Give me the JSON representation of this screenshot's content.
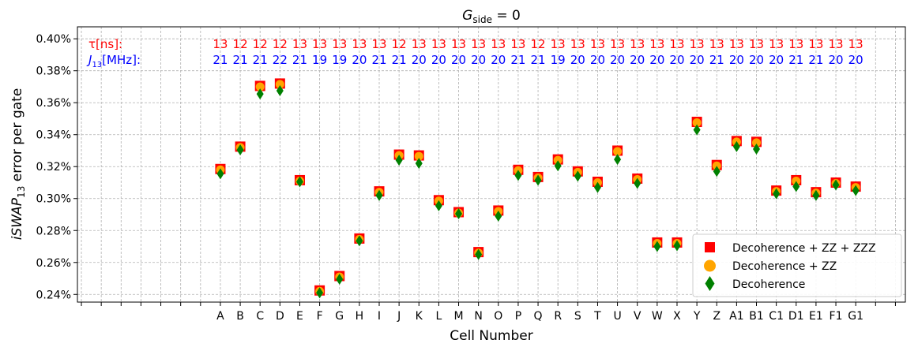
{
  "chart_data": {
    "type": "scatter",
    "title": "G_side = 0",
    "title_main": "G",
    "title_sub": "side",
    "title_rest": " = 0",
    "xlabel": "Cell Number",
    "ylabel": "iSWAP₁₃ error per gate",
    "ylabel_main": "iSWAP",
    "ylabel_sub": "13",
    "ylabel_rest": " error per gate",
    "ylim": [
      0.2352,
      0.4075
    ],
    "yticks": [
      0.24,
      0.26,
      0.28,
      0.3,
      0.32,
      0.34,
      0.36,
      0.38,
      0.4
    ],
    "ytick_labels": [
      "0.24%",
      "0.26%",
      "0.28%",
      "0.30%",
      "0.32%",
      "0.34%",
      "0.36%",
      "0.38%",
      "0.40%"
    ],
    "xlim": [
      -7.2,
      34.5
    ],
    "grid": true,
    "legend_position": "lower-right",
    "categories": [
      "A",
      "B",
      "C",
      "D",
      "E",
      "F",
      "G",
      "H",
      "I",
      "J",
      "K",
      "L",
      "M",
      "N",
      "O",
      "P",
      "Q",
      "R",
      "S",
      "T",
      "U",
      "V",
      "W",
      "X",
      "Y",
      "Z",
      "A1",
      "B1",
      "C1",
      "D1",
      "E1",
      "F1",
      "G1"
    ],
    "series": [
      {
        "name": "Decoherence + ZZ + ZZZ",
        "marker": "square",
        "color": "#ff0000",
        "values": [
          0.3185,
          0.3325,
          0.3705,
          0.372,
          0.3115,
          0.2425,
          0.2515,
          0.275,
          0.3045,
          0.3275,
          0.327,
          0.299,
          0.2915,
          0.2665,
          0.2925,
          0.318,
          0.3135,
          0.3245,
          0.317,
          0.3105,
          0.33,
          0.3125,
          0.2725,
          0.2725,
          0.348,
          0.321,
          0.336,
          0.3355,
          0.305,
          0.3115,
          0.304,
          0.31,
          0.3075
        ]
      },
      {
        "name": "Decoherence + ZZ",
        "marker": "circle",
        "color": "#ffa500",
        "values": [
          0.318,
          0.332,
          0.37,
          0.3715,
          0.311,
          0.242,
          0.251,
          0.2745,
          0.304,
          0.327,
          0.3265,
          0.2985,
          0.291,
          0.266,
          0.292,
          0.3175,
          0.313,
          0.324,
          0.3165,
          0.31,
          0.3295,
          0.312,
          0.272,
          0.272,
          0.3475,
          0.3205,
          0.3355,
          0.335,
          0.3045,
          0.311,
          0.3035,
          0.3095,
          0.307
        ]
      },
      {
        "name": "Decoherence",
        "marker": "diamond",
        "color": "#008000",
        "values": [
          0.3155,
          0.3305,
          0.3655,
          0.3675,
          0.3105,
          0.241,
          0.2495,
          0.2735,
          0.302,
          0.324,
          0.322,
          0.2955,
          0.2905,
          0.265,
          0.289,
          0.3145,
          0.3115,
          0.3205,
          0.314,
          0.307,
          0.3245,
          0.3095,
          0.27,
          0.2705,
          0.343,
          0.317,
          0.3325,
          0.331,
          0.303,
          0.3075,
          0.302,
          0.3085,
          0.305
        ]
      }
    ],
    "annotations": {
      "tau_label": "τ[ns]:",
      "tau_color": "#ff0000",
      "tau_values": [
        13,
        12,
        12,
        12,
        13,
        13,
        13,
        13,
        13,
        12,
        13,
        13,
        13,
        13,
        13,
        13,
        12,
        13,
        13,
        13,
        13,
        13,
        13,
        13,
        13,
        13,
        13,
        13,
        13,
        13,
        13,
        13,
        13
      ],
      "j_label_main": "J",
      "j_label_sub": "13",
      "j_label_rest": "[MHz]:",
      "j_color": "#0000ff",
      "j_values": [
        21,
        21,
        21,
        22,
        21,
        19,
        19,
        20,
        21,
        21,
        20,
        20,
        20,
        20,
        20,
        21,
        21,
        19,
        20,
        20,
        20,
        20,
        20,
        20,
        20,
        21,
        20,
        20,
        20,
        21,
        21,
        20,
        20
      ]
    }
  }
}
